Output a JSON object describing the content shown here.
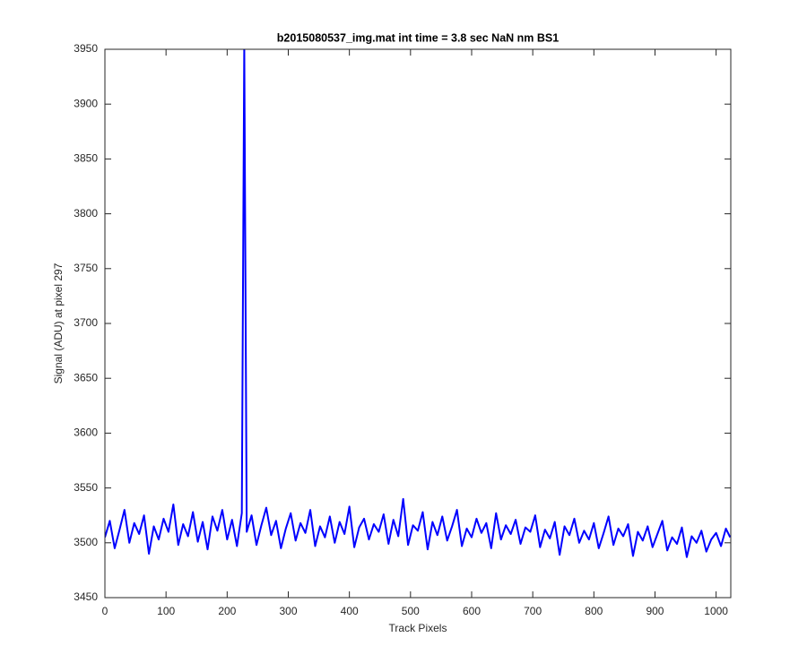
{
  "chart_data": {
    "type": "line",
    "title": "b2015080537_img.mat int time = 3.8 sec  NaN nm BS1",
    "xlabel": "Track Pixels",
    "ylabel": "Signal (ADU) at pixel 297",
    "color": "#0000ff",
    "xlim": [
      0,
      1024
    ],
    "ylim": [
      3450,
      3950
    ],
    "xticks": [
      0,
      100,
      200,
      300,
      400,
      500,
      600,
      700,
      800,
      900,
      1000
    ],
    "yticks": [
      3450,
      3500,
      3550,
      3600,
      3650,
      3700,
      3750,
      3800,
      3850,
      3900,
      3950
    ],
    "grid": false,
    "x": [
      0,
      8,
      16,
      24,
      32,
      40,
      48,
      56,
      64,
      72,
      80,
      88,
      96,
      104,
      112,
      120,
      128,
      136,
      144,
      152,
      160,
      168,
      176,
      184,
      192,
      200,
      208,
      216,
      224,
      228,
      232,
      240,
      248,
      256,
      264,
      272,
      280,
      288,
      296,
      304,
      312,
      320,
      328,
      336,
      344,
      352,
      360,
      368,
      376,
      384,
      392,
      400,
      408,
      416,
      424,
      432,
      440,
      448,
      456,
      464,
      472,
      480,
      488,
      496,
      504,
      512,
      520,
      528,
      536,
      544,
      552,
      560,
      568,
      576,
      584,
      592,
      600,
      608,
      616,
      624,
      632,
      640,
      648,
      656,
      664,
      672,
      680,
      688,
      696,
      704,
      712,
      720,
      728,
      736,
      744,
      752,
      760,
      768,
      776,
      784,
      792,
      800,
      808,
      816,
      824,
      832,
      840,
      848,
      856,
      864,
      872,
      880,
      888,
      896,
      904,
      912,
      920,
      928,
      936,
      944,
      952,
      960,
      968,
      976,
      984,
      992,
      1000,
      1008,
      1016,
      1023
    ],
    "values": [
      3505,
      3520,
      3495,
      3512,
      3530,
      3500,
      3518,
      3508,
      3525,
      3490,
      3515,
      3503,
      3522,
      3510,
      3535,
      3498,
      3517,
      3506,
      3528,
      3501,
      3519,
      3494,
      3524,
      3511,
      3530,
      3503,
      3521,
      3497,
      3527,
      3955,
      3510,
      3525,
      3498,
      3516,
      3532,
      3507,
      3520,
      3495,
      3513,
      3527,
      3502,
      3518,
      3509,
      3530,
      3497,
      3515,
      3505,
      3524,
      3500,
      3519,
      3508,
      3533,
      3496,
      3514,
      3522,
      3503,
      3517,
      3510,
      3526,
      3499,
      3521,
      3506,
      3540,
      3498,
      3516,
      3511,
      3528,
      3494,
      3519,
      3507,
      3524,
      3502,
      3515,
      3530,
      3497,
      3513,
      3505,
      3522,
      3509,
      3518,
      3495,
      3527,
      3503,
      3516,
      3508,
      3521,
      3499,
      3514,
      3510,
      3525,
      3496,
      3512,
      3504,
      3519,
      3489,
      3515,
      3507,
      3522,
      3500,
      3511,
      3503,
      3518,
      3495,
      3509,
      3524,
      3498,
      3513,
      3506,
      3517,
      3488,
      3510,
      3502,
      3515,
      3496,
      3508,
      3520,
      3493,
      3505,
      3499,
      3514,
      3487,
      3506,
      3500,
      3511,
      3492,
      3503,
      3509,
      3497,
      3513,
      3505
    ]
  }
}
